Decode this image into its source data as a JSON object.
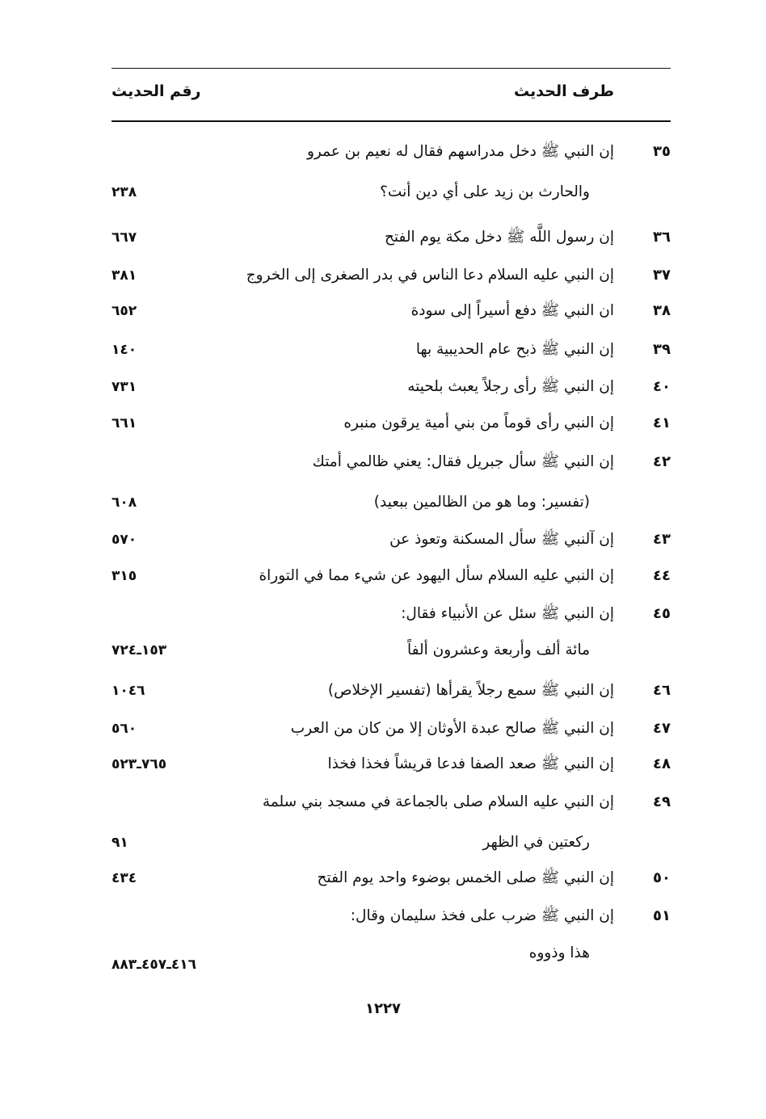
{
  "header": {
    "col_text": "طرف الحديث",
    "col_ref": "رقم الحديث"
  },
  "lines": [
    {
      "num": "٣٥",
      "text": "إن النبي ﷺ دخل مدراسهم فقال له نعيم بن عمرو",
      "ref": ""
    },
    {
      "num": "",
      "text": "والحارث بن زيد على أي دين أنت؟",
      "ref": "٢٣٨"
    },
    {
      "num": "٣٦",
      "text": "إن رسول اللَّه ﷺ دخل مكة يوم الفتح",
      "ref": "٦٦٧"
    },
    {
      "num": "٣٧",
      "text": "إن النبي عليه السلام دعا الناس في بدر الصغرى إلى الخروج",
      "ref": "٣٨١"
    },
    {
      "num": "٣٨",
      "text": "ان النبي ﷺ دفع أسيراً إلى سودة",
      "ref": "٦٥٢"
    },
    {
      "num": "٣٩",
      "text": "إن النبي ﷺ ذبح عام الحديبية بها",
      "ref": "١٤٠"
    },
    {
      "num": "٤٠",
      "text": "إن النبي ﷺ رأى رجلاً يعبث بلحيته",
      "ref": "٧٣١"
    },
    {
      "num": "٤١",
      "text": "إن النبي رأى قوماً من بني أمية يرقون منبره",
      "ref": "٦٦١"
    },
    {
      "num": "٤٢",
      "text": "إن النبي ﷺ سأل جبريل فقال: يعني ظالمي أمتك",
      "ref": ""
    },
    {
      "num": "",
      "text": "(تفسير: وما هو من الظالمين ببعيد)",
      "ref": "٦٠٨"
    },
    {
      "num": "٤٣",
      "text": "إن آلنبي ﷺ سأل المسكنة وتعوذ عن",
      "ref": "٥٧٠"
    },
    {
      "num": "٤٤",
      "text": "إن النبي عليه السلام سأل اليهود عن شيء مما في التوراة",
      "ref": "٣١٥"
    },
    {
      "num": "٤٥",
      "text": "إن النبي ﷺ سئل عن الأنبياء فقال:",
      "ref": ""
    },
    {
      "num": "",
      "text": "مائة ألف وأربعة وعشرون ألفاً",
      "ref": "١٥٣ـ٧٢٤"
    },
    {
      "num": "٤٦",
      "text": "إن النبي ﷺ سمع رجلاً يقرأها (تفسير الإخلاص)",
      "ref": "١٠٤٦"
    },
    {
      "num": "٤٧",
      "text": "إن النبي ﷺ صالح عبدة الأوثان إلا من كان من العرب",
      "ref": "٥٦٠"
    },
    {
      "num": "٤٨",
      "text": "إن النبي ﷺ صعد الصفا فدعا قريشاً فخذا فخذا",
      "ref": "٧٦٥ـ٥٢٣"
    },
    {
      "num": "٤٩",
      "text": "إن النبي عليه السلام صلى بالجماعة في مسجد بني سلمة",
      "ref": ""
    },
    {
      "num": "",
      "text": "ركعتين في الظهر",
      "ref": "٩١"
    },
    {
      "num": "٥٠",
      "text": "إن النبي ﷺ صلى الخمس بوضوء واحد يوم الفتح",
      "ref": "٤٣٤"
    },
    {
      "num": "٥١",
      "text": "إن النبي ﷺ ضرب على فخذ سليمان وقال:",
      "ref": ""
    },
    {
      "num": "",
      "text": "هذا وذووه",
      "ref": "٤١٦ـ٤٥٧ـ٨٨٣"
    }
  ],
  "page_number": "١٢٢٧"
}
